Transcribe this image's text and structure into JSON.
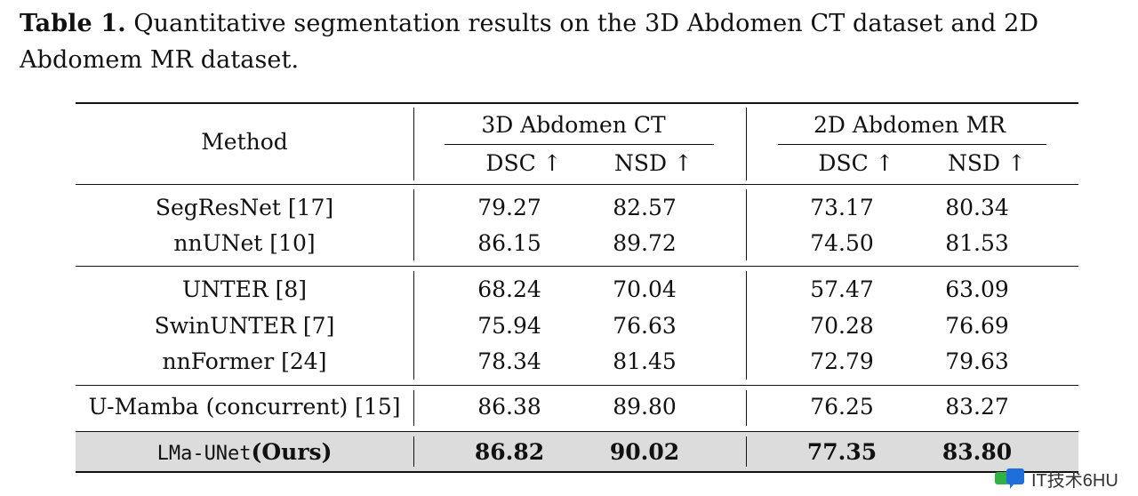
{
  "caption": {
    "label": "Table 1.",
    "text": "Quantitative segmentation results on the 3D Abdomen CT dataset and 2D Abdomem MR dataset."
  },
  "table": {
    "method_header": "Method",
    "groups": [
      "3D Abdomen CT",
      "2D Abdomen MR"
    ],
    "metrics": [
      "DSC ↑",
      "NSD ↑",
      "DSC ↑",
      "NSD ↑"
    ],
    "rows": [
      {
        "method": "SegResNet [17]",
        "values": [
          "79.27",
          "82.57",
          "73.17",
          "80.34"
        ]
      },
      {
        "method": "nnUNet [10]",
        "values": [
          "86.15",
          "89.72",
          "74.50",
          "81.53"
        ]
      },
      {
        "method": "UNTER [8]",
        "values": [
          "68.24",
          "70.04",
          "57.47",
          "63.09"
        ]
      },
      {
        "method": "SwinUNTER [7]",
        "values": [
          "75.94",
          "76.63",
          "70.28",
          "76.69"
        ]
      },
      {
        "method": "nnFormer [24]",
        "values": [
          "78.34",
          "81.45",
          "72.79",
          "79.63"
        ]
      },
      {
        "method": "U-Mamba (concurrent) [15]",
        "values": [
          "86.38",
          "89.80",
          "76.25",
          "83.27"
        ]
      }
    ],
    "ours": {
      "method_mono": "LMa-UNet",
      "method_suffix": "(Ours)",
      "values": [
        "86.82",
        "90.02",
        "77.35",
        "83.80"
      ]
    }
  },
  "watermark": {
    "text": "IT技术6HU"
  }
}
